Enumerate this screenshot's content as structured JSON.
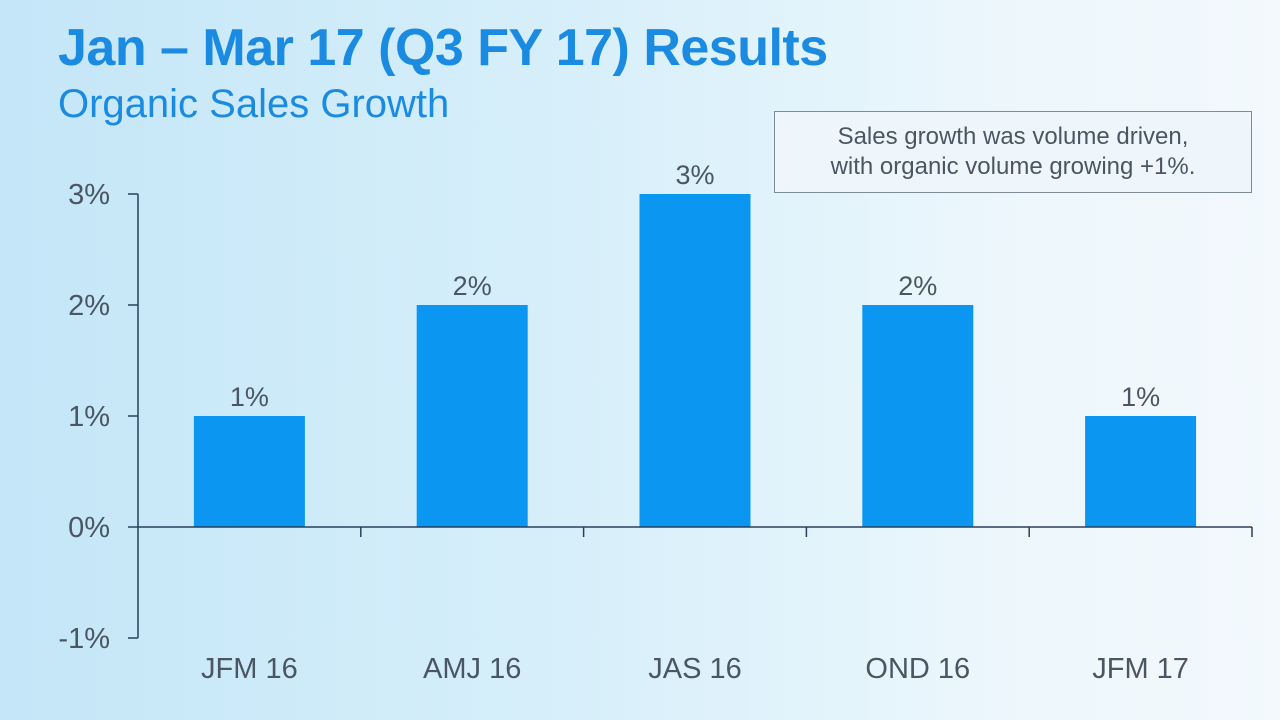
{
  "slide": {
    "title": "Jan – Mar 17 (Q3 FY 17) Results",
    "subtitle": "Organic Sales Growth"
  },
  "callout": {
    "line1": "Sales growth was volume driven,",
    "line2": "with organic volume growing +1%."
  },
  "colors": {
    "title": "#1a8be0",
    "bar": "#0b96f2",
    "axis": "#2b3f5c",
    "tick_text": "#4a5663",
    "label_text": "#4a5663"
  },
  "chart_data": {
    "type": "bar",
    "title": "",
    "xlabel": "",
    "ylabel": "",
    "categories": [
      "JFM 16",
      "AMJ 16",
      "JAS 16",
      "OND 16",
      "JFM 17"
    ],
    "values": [
      1,
      2,
      3,
      2,
      1
    ],
    "data_labels": [
      "1%",
      "2%",
      "3%",
      "2%",
      "1%"
    ],
    "ylim": [
      -1,
      3
    ],
    "yticks": [
      -1,
      0,
      1,
      2,
      3
    ],
    "ytick_labels": [
      "-1%",
      "0%",
      "1%",
      "2%",
      "3%"
    ],
    "grid": false,
    "legend": "none"
  }
}
